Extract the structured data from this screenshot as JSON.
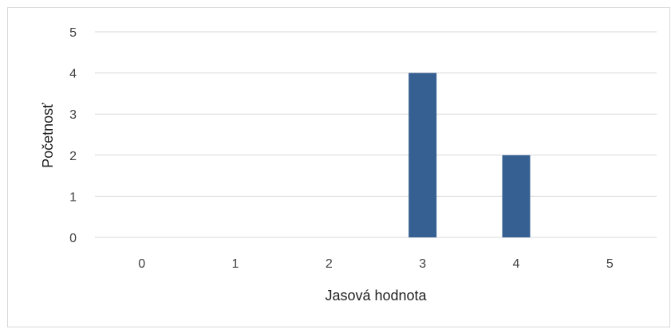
{
  "chart_data": {
    "type": "bar",
    "categories": [
      "0",
      "1",
      "2",
      "3",
      "4",
      "5"
    ],
    "values": [
      0,
      0,
      0,
      4,
      2,
      0
    ],
    "title": "",
    "xlabel": "Jasová hodnota",
    "ylabel": "Početnosť",
    "ylim": [
      0,
      5
    ],
    "yticks": [
      "0",
      "1",
      "2",
      "3",
      "4",
      "5"
    ],
    "grid": true,
    "legend": "none",
    "bar_color": "#366092",
    "grid_color": "#d9d9d9"
  }
}
